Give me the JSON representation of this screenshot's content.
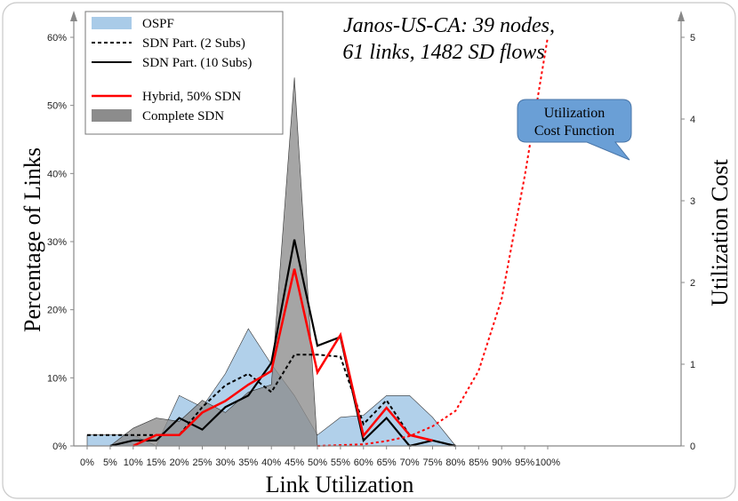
{
  "chart_data": {
    "type": "area",
    "title_line1": "Janos-US-CA:  39 nodes,",
    "title_line2": "61 links, 1482 SD flows",
    "xlabel": "Link Utilization",
    "ylabel": "Percentage of Links",
    "y2label": "Utilization Cost",
    "categories": [
      "0%",
      "5%",
      "10%",
      "15%",
      "20%",
      "25%",
      "30%",
      "35%",
      "40%",
      "45%",
      "50%",
      "55%",
      "60%",
      "65%",
      "70%",
      "75%",
      "80%",
      "85%",
      "90%",
      "95%",
      "100%"
    ],
    "ylim": [
      0,
      60
    ],
    "y_ticks": [
      0,
      10,
      20,
      30,
      40,
      50,
      60
    ],
    "y_tick_labels": [
      "0%",
      "10%",
      "20%",
      "30%",
      "40%",
      "50%",
      "60%"
    ],
    "y2lim": [
      0,
      5
    ],
    "y2_ticks": [
      0,
      1,
      2,
      3,
      4,
      5
    ],
    "y2_tick_labels": [
      "0",
      "1",
      "2",
      "3",
      "4",
      "5"
    ],
    "series": [
      {
        "name": "OSPF",
        "style": "area",
        "color": "#a9cbe8",
        "values": [
          1.6,
          1.6,
          1.6,
          0,
          7.4,
          5.7,
          10.6,
          17.2,
          12.0,
          7.4,
          1.6,
          4.2,
          4.5,
          7.4,
          7.4,
          4.2,
          0,
          null,
          null,
          null,
          null
        ]
      },
      {
        "name": "Complete SDN",
        "style": "area",
        "color": "#8c8c8c",
        "values": [
          0,
          0,
          2.6,
          4.1,
          3.6,
          6.7,
          4.9,
          7.9,
          9.0,
          54.1,
          0,
          0,
          0,
          0,
          0,
          0,
          0,
          null,
          null,
          null,
          null
        ]
      },
      {
        "name": "SDN Part. (2 Subs)",
        "style": "dashed",
        "color": "#000000",
        "values": [
          1.6,
          1.6,
          1.6,
          1.6,
          1.6,
          5.7,
          8.9,
          10.6,
          7.9,
          13.4,
          13.4,
          13.1,
          3.2,
          6.7,
          1.6,
          0.8,
          0,
          null,
          null,
          null,
          null
        ]
      },
      {
        "name": "SDN Part. (10 Subs)",
        "style": "solid",
        "color": "#000000",
        "values": [
          null,
          0,
          0.8,
          0.8,
          4.1,
          2.4,
          5.7,
          7.4,
          12.2,
          30.3,
          14.7,
          16.0,
          0.8,
          4.1,
          0,
          0.8,
          0,
          null,
          null,
          null,
          null
        ]
      },
      {
        "name": "Hybrid, 50% SDN",
        "style": "solid",
        "color": "#ff0000",
        "values": [
          null,
          null,
          0,
          1.6,
          1.6,
          4.9,
          6.6,
          9.0,
          11.0,
          26.0,
          10.8,
          16.3,
          1.5,
          5.6,
          1.6,
          0.8,
          null,
          null,
          null,
          null,
          null
        ]
      },
      {
        "name": "Utilization Cost Function",
        "style": "dotted",
        "color": "#ff0000",
        "axis": "right",
        "values": [
          null,
          null,
          null,
          null,
          null,
          null,
          null,
          null,
          null,
          null,
          0,
          0.01,
          0.02,
          0.06,
          0.12,
          0.24,
          0.43,
          0.92,
          1.8,
          3.3,
          5.0
        ]
      }
    ],
    "legend": [
      "OSPF",
      "SDN Part. (2 Subs)",
      "SDN Part. (10 Subs)",
      "Hybrid, 50% SDN",
      "Complete SDN"
    ],
    "legend_position": "top-left",
    "annotation": {
      "line1": "Utilization",
      "line2": "Cost Function",
      "color": "#6a9fd6"
    }
  }
}
